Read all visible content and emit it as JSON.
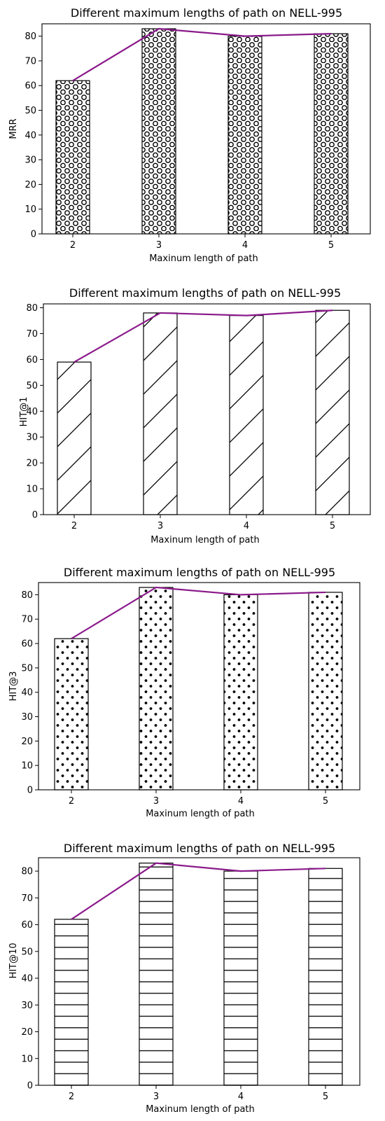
{
  "chart_data": [
    {
      "type": "bar",
      "title": "Different maximum lengths of path on NELL-995",
      "xlabel": "Maxinum length of path",
      "ylabel": "MRR",
      "categories": [
        "2",
        "3",
        "4",
        "5"
      ],
      "values": [
        62,
        83,
        80,
        81
      ],
      "line_values": [
        62,
        83,
        80,
        81
      ],
      "ylim": [
        0,
        85
      ],
      "yticks": [
        "0",
        "10",
        "20",
        "30",
        "40",
        "50",
        "60",
        "70",
        "80"
      ],
      "hatch": "circles",
      "line_color": "#8b1a8b",
      "grid": false
    },
    {
      "type": "bar",
      "title": "Different maximum lengths of path on NELL-995",
      "xlabel": "Maxinum length of path",
      "ylabel": "HIT@1",
      "categories": [
        "2",
        "3",
        "4",
        "5"
      ],
      "values": [
        59,
        78,
        77,
        79
      ],
      "line_values": [
        59,
        78,
        77,
        79
      ],
      "ylim": [
        0,
        81.5
      ],
      "yticks": [
        "0",
        "10",
        "20",
        "30",
        "40",
        "50",
        "60",
        "70",
        "80"
      ],
      "hatch": "diagonal",
      "line_color": "#8b1a8b",
      "grid": false
    },
    {
      "type": "bar",
      "title": "Different maximum lengths of path on NELL-995",
      "xlabel": "Maxinum length of path",
      "ylabel": "HIT@3",
      "categories": [
        "2",
        "3",
        "4",
        "5"
      ],
      "values": [
        62,
        83,
        80,
        81
      ],
      "line_values": [
        62,
        83,
        80,
        81
      ],
      "ylim": [
        0,
        85
      ],
      "yticks": [
        "0",
        "10",
        "20",
        "30",
        "40",
        "50",
        "60",
        "70",
        "80"
      ],
      "hatch": "dots",
      "line_color": "#8b1a8b",
      "grid": false
    },
    {
      "type": "bar",
      "title": "Different maximum lengths of path on NELL-995",
      "xlabel": "Maxinum length of path",
      "ylabel": "HIT@10",
      "categories": [
        "2",
        "3",
        "4",
        "5"
      ],
      "values": [
        62,
        83,
        80,
        81
      ],
      "line_values": [
        62,
        83,
        80,
        81
      ],
      "ylim": [
        0,
        85
      ],
      "yticks": [
        "0",
        "10",
        "20",
        "30",
        "40",
        "50",
        "60",
        "70",
        "80"
      ],
      "hatch": "horizontal",
      "line_color": "#8b1a8b",
      "grid": false
    }
  ]
}
